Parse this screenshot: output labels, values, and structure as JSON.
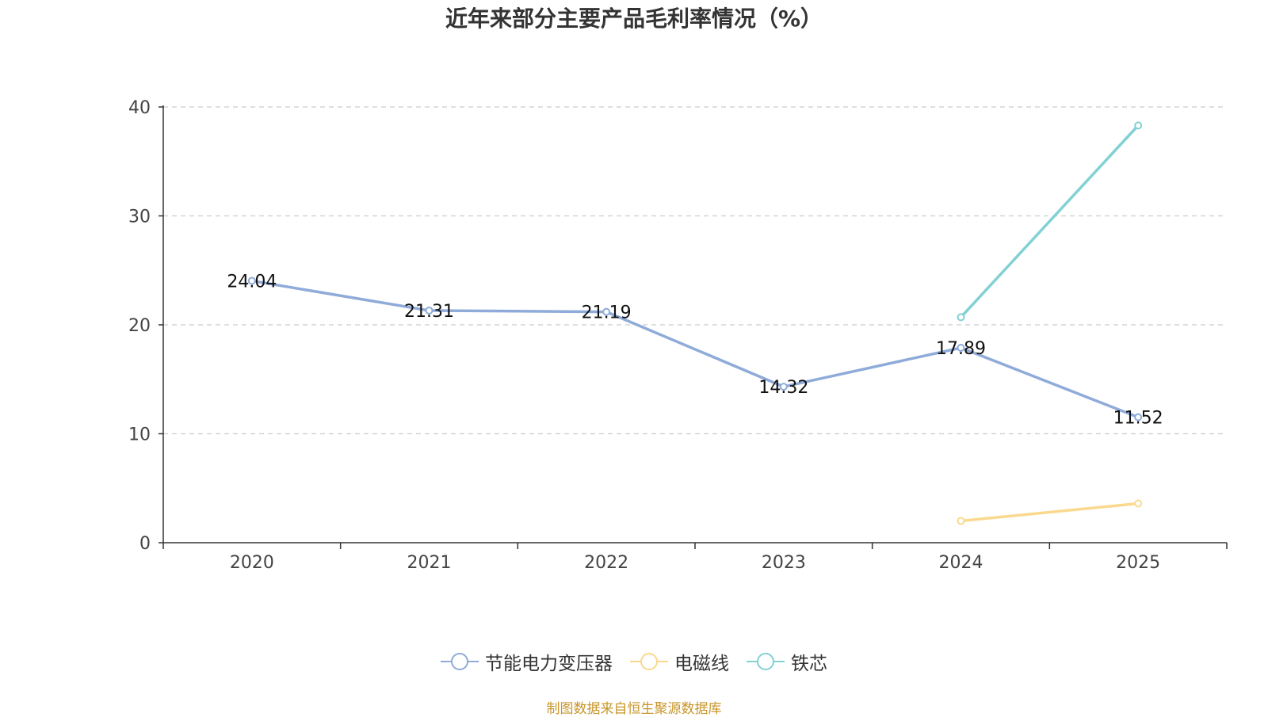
{
  "chart_data": {
    "type": "line",
    "title": "近年来部分主要产品毛利率情况（%）",
    "categories": [
      "2020",
      "2021",
      "2022",
      "2023",
      "2024",
      "2025"
    ],
    "ylim": [
      0,
      40
    ],
    "yticks": [
      "0",
      "10",
      "20",
      "30",
      "40"
    ],
    "grid": true,
    "legend_position": "bottom-center",
    "series": [
      {
        "name": "节能电力变压器",
        "color": "#8fabd9",
        "values": [
          24.04,
          21.31,
          21.19,
          14.32,
          17.89,
          11.52
        ],
        "labels": [
          "24.04",
          "21.31",
          "21.19",
          "14.32",
          "17.89",
          "11.52"
        ]
      },
      {
        "name": "电磁线",
        "color": "#fad98f",
        "values": [
          null,
          null,
          null,
          null,
          2.0,
          3.6
        ],
        "labels": []
      },
      {
        "name": "铁芯",
        "color": "#82d1d4",
        "values": [
          null,
          null,
          null,
          null,
          20.7,
          38.3
        ],
        "labels": []
      }
    ]
  },
  "source_note": "制图数据来自恒生聚源数据库"
}
